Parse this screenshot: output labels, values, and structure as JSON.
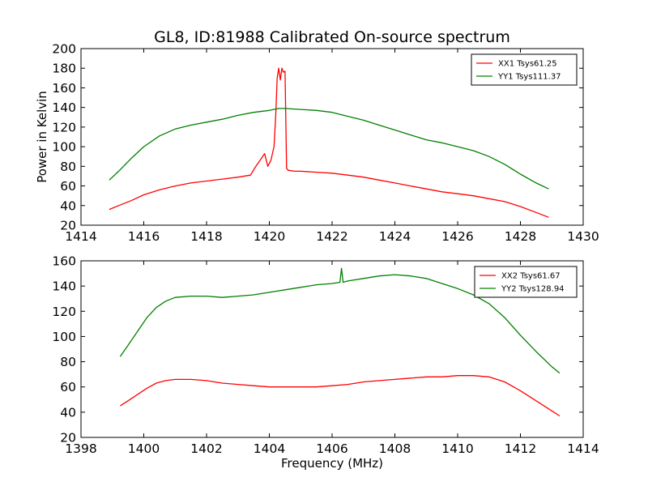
{
  "figure": {
    "title": "GL8, ID:81988 Calibrated On-source spectrum",
    "xlabel": "Frequency (MHz)",
    "ylabel": "Power in Kelvin"
  },
  "chart_data": [
    {
      "type": "line",
      "title": "GL8, ID:81988 Calibrated On-source spectrum",
      "xlabel": "",
      "ylabel": "Power in Kelvin",
      "xlim": [
        1414,
        1430
      ],
      "ylim": [
        20,
        200
      ],
      "xticks": [
        1414,
        1416,
        1418,
        1420,
        1422,
        1424,
        1426,
        1428,
        1430
      ],
      "yticks": [
        20,
        40,
        60,
        80,
        100,
        120,
        140,
        160,
        180,
        200
      ],
      "grid": false,
      "legend_position": "top-right",
      "series": [
        {
          "name": "XX1 Tsys61.25",
          "color": "#ff0000",
          "x": [
            1414.9,
            1415.2,
            1415.6,
            1416.0,
            1416.5,
            1417.0,
            1417.5,
            1418.0,
            1418.5,
            1419.0,
            1419.4,
            1419.55,
            1419.7,
            1419.85,
            1419.95,
            1420.05,
            1420.15,
            1420.2,
            1420.25,
            1420.3,
            1420.35,
            1420.4,
            1420.45,
            1420.5,
            1420.55,
            1420.6,
            1420.8,
            1421.0,
            1421.5,
            1422.0,
            1422.5,
            1423.0,
            1423.5,
            1424.0,
            1424.5,
            1425.0,
            1425.5,
            1426.0,
            1426.5,
            1427.0,
            1427.5,
            1428.0,
            1428.5,
            1428.9
          ],
          "y": [
            36,
            40,
            45,
            51,
            56,
            60,
            63,
            65,
            67,
            69,
            71,
            79,
            86,
            93,
            80,
            86,
            100,
            130,
            170,
            180,
            168,
            180,
            176,
            177,
            78,
            76,
            75,
            75,
            74,
            73,
            71,
            69,
            66,
            63,
            60,
            57,
            54,
            52,
            50,
            47,
            44,
            39,
            33,
            28
          ]
        },
        {
          "name": "YY1 Tsys111.37",
          "color": "#008000",
          "x": [
            1414.9,
            1415.2,
            1415.6,
            1416.0,
            1416.5,
            1417.0,
            1417.5,
            1418.0,
            1418.5,
            1419.0,
            1419.5,
            1420.0,
            1420.3,
            1420.5,
            1421.0,
            1421.5,
            1422.0,
            1422.5,
            1423.0,
            1423.5,
            1424.0,
            1424.5,
            1425.0,
            1425.5,
            1426.0,
            1426.5,
            1427.0,
            1427.5,
            1428.0,
            1428.5,
            1428.9
          ],
          "y": [
            66,
            75,
            88,
            100,
            111,
            118,
            122,
            125,
            128,
            132,
            135,
            137,
            139,
            139,
            138,
            137,
            135,
            131,
            127,
            122,
            117,
            112,
            107,
            104,
            100,
            96,
            90,
            82,
            72,
            63,
            57
          ]
        }
      ]
    },
    {
      "type": "line",
      "title": "",
      "xlabel": "Frequency (MHz)",
      "ylabel": "",
      "xlim": [
        1398,
        1414
      ],
      "ylim": [
        20,
        160
      ],
      "xticks": [
        1398,
        1400,
        1402,
        1404,
        1406,
        1408,
        1410,
        1412,
        1414
      ],
      "yticks": [
        20,
        40,
        60,
        80,
        100,
        120,
        140,
        160
      ],
      "grid": false,
      "legend_position": "top-right",
      "series": [
        {
          "name": "XX2 Tsys61.67",
          "color": "#ff0000",
          "x": [
            1399.25,
            1399.5,
            1399.8,
            1400.1,
            1400.4,
            1400.7,
            1401.0,
            1401.5,
            1402.0,
            1402.5,
            1403.0,
            1403.5,
            1404.0,
            1404.5,
            1405.0,
            1405.5,
            1406.0,
            1406.5,
            1407.0,
            1407.5,
            1408.0,
            1408.5,
            1409.0,
            1409.5,
            1410.0,
            1410.5,
            1411.0,
            1411.5,
            1412.0,
            1412.5,
            1413.0,
            1413.25
          ],
          "y": [
            45,
            49,
            54,
            59,
            63,
            65,
            66,
            66,
            65,
            63,
            62,
            61,
            60,
            60,
            60,
            60,
            61,
            62,
            64,
            65,
            66,
            67,
            68,
            68,
            69,
            69,
            68,
            64,
            57,
            49,
            41,
            37
          ]
        },
        {
          "name": "YY2 Tsys128.94",
          "color": "#008000",
          "x": [
            1399.25,
            1399.5,
            1399.8,
            1400.1,
            1400.4,
            1400.7,
            1401.0,
            1401.5,
            1402.0,
            1402.5,
            1403.0,
            1403.5,
            1404.0,
            1404.5,
            1405.0,
            1405.5,
            1406.0,
            1406.25,
            1406.3,
            1406.35,
            1406.5,
            1407.0,
            1407.5,
            1408.0,
            1408.5,
            1409.0,
            1409.5,
            1410.0,
            1410.5,
            1411.0,
            1411.5,
            1412.0,
            1412.5,
            1413.0,
            1413.25
          ],
          "y": [
            84,
            93,
            104,
            115,
            123,
            128,
            131,
            132,
            132,
            131,
            132,
            133,
            135,
            137,
            139,
            141,
            142,
            143,
            154,
            143,
            144,
            146,
            148,
            149,
            148,
            146,
            142,
            138,
            133,
            126,
            115,
            101,
            88,
            76,
            71
          ]
        }
      ]
    }
  ]
}
